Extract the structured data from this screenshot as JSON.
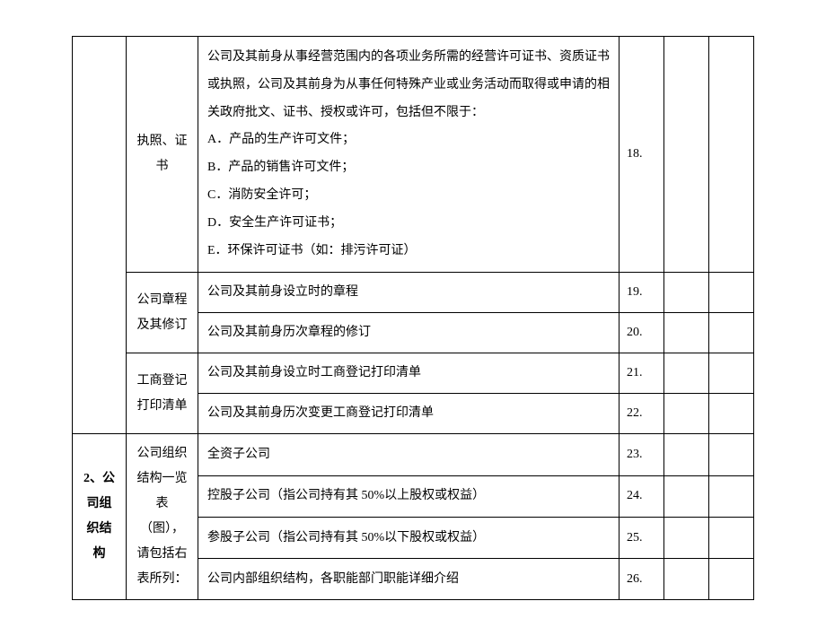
{
  "table": {
    "columns": {
      "section_width": 60,
      "category_width": 80,
      "description_width": "auto",
      "number_width": 50,
      "blank1_width": 50,
      "blank2_width": 50
    },
    "border_color": "#000000",
    "background_color": "#ffffff",
    "font_family": "SimSun",
    "font_size": 14,
    "line_height": 2.0,
    "rows": [
      {
        "section": "",
        "category": "执照、证书",
        "description": "公司及其前身从事经营范围内的各项业务所需的经营许可证书、资质证书或执照，公司及其前身为从事任何特殊产业或业务活动而取得或申请的相关政府批文、证书、授权或许可，包括但不限于：\nA．产品的生产许可文件；\nB．产品的销售许可文件；\nC．消防安全许可；\nD．安全生产许可证书；\nE．环保许可证书（如：排污许可证）",
        "number": "18."
      },
      {
        "category": "公司章程及其修订",
        "category_rowspan": 2,
        "description": "公司及其前身设立时的章程",
        "number": "19."
      },
      {
        "description": "公司及其前身历次章程的修订",
        "number": "20."
      },
      {
        "category": "工商登记打印清单",
        "category_rowspan": 2,
        "description": "公司及其前身设立时工商登记打印清单",
        "number": "21."
      },
      {
        "description": "公司及其前身历次变更工商登记打印清单",
        "number": "22."
      },
      {
        "section": "2、公司组织结构",
        "section_rowspan": 4,
        "category": "公司组织结构一览表（图），请包括右表所列：",
        "category_rowspan": 4,
        "description": "全资子公司",
        "number": "23."
      },
      {
        "description": "控股子公司（指公司持有其 50%以上股权或权益）",
        "number": "24."
      },
      {
        "description": "参股子公司（指公司持有其 50%以下股权或权益）",
        "number": "25."
      },
      {
        "description": "公司内部组织结构，各职能部门职能详细介绍",
        "number": "26."
      }
    ]
  }
}
